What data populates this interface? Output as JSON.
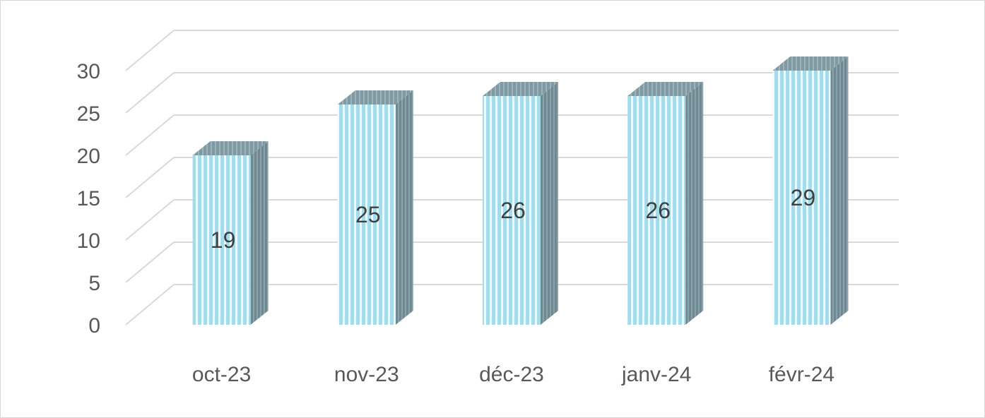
{
  "chart_data": {
    "type": "bar",
    "style": "3d-column",
    "categories": [
      "oct-23",
      "nov-23",
      "déc-23",
      "janv-24",
      "févr-24"
    ],
    "values": [
      19,
      25,
      26,
      26,
      29
    ],
    "ylim": [
      0,
      30
    ],
    "yticks": [
      0,
      5,
      10,
      15,
      20,
      25,
      30
    ],
    "ytick_labels": [
      "0",
      "5",
      "10",
      "15",
      "20",
      "25",
      "30"
    ],
    "grid": true,
    "legend": "none",
    "data_labels": [
      "19",
      "25",
      "26",
      "26",
      "29"
    ],
    "colors": {
      "bar_front": "#a6dcea",
      "bar_front_stripe": "#ffffff",
      "bar_side": "#6f8891",
      "bar_top": "#7f9aa3",
      "gridline": "#d9d9d9",
      "tick_text": "#595959",
      "label_text": "#404040"
    }
  }
}
